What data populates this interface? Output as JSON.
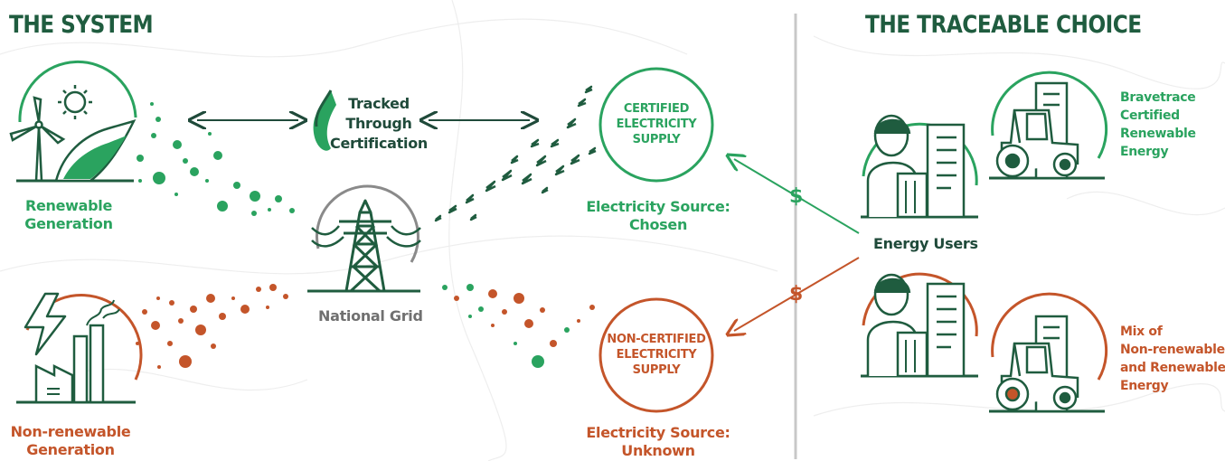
{
  "headings": {
    "system": "THE SYSTEM",
    "choice": "THE TRACEABLE CHOICE"
  },
  "labels": {
    "renewable_generation": [
      "Renewable",
      "Generation"
    ],
    "nonrenewable_generation": [
      "Non-renewable",
      "Generation"
    ],
    "tracked": [
      "Tracked",
      "Through",
      "Certification"
    ],
    "national_grid": "National Grid",
    "certified_supply": [
      "CERTIFIED",
      "ELECTRICITY",
      "SUPPLY"
    ],
    "noncertified_supply": [
      "NON-CERTIFIED",
      "ELECTRICITY",
      "SUPPLY"
    ],
    "source_chosen": [
      "Electricity Source:",
      "Chosen"
    ],
    "source_unknown": [
      "Electricity Source:",
      "Unknown"
    ],
    "energy_users": "Energy Users",
    "bravetrace": [
      "Bravetrace",
      "Certified",
      "Renewable",
      "Energy"
    ],
    "mix": [
      "Mix of",
      "Non-renewable",
      "and Renewable",
      "Energy"
    ],
    "dollar_top": "$",
    "dollar_bottom": "$"
  },
  "colors": {
    "green": "#2aa35f",
    "dark_green": "#1f5c3f",
    "orange": "#c4552a",
    "gray": "#8a8a8a"
  },
  "icons": [
    "wind-turbine-icon",
    "sun-icon",
    "solar-panel-icon",
    "lightning-icon",
    "factory-icon",
    "pylon-icon",
    "person-icon",
    "building-icon",
    "tractor-icon",
    "arrow-icon"
  ]
}
